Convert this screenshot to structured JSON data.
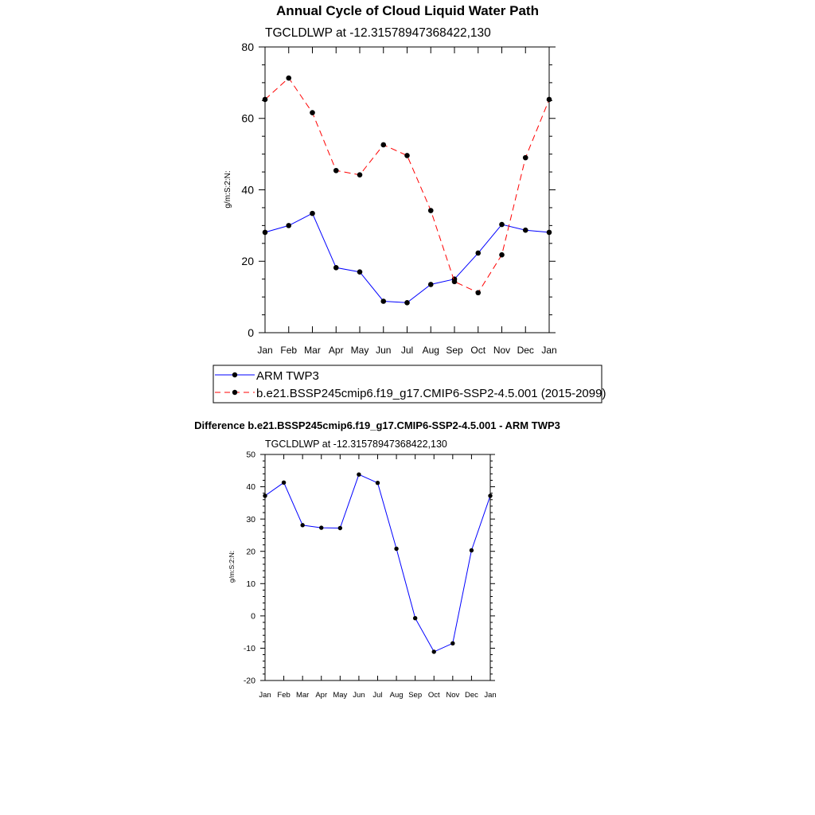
{
  "chart_data": [
    {
      "type": "line",
      "title": "Annual Cycle of Cloud Liquid Water Path",
      "subtitle": "TGCLDLWP at -12.31578947368422,130",
      "xlabel": "",
      "ylabel": "g/m:S:2:N:",
      "categories": [
        "Jan",
        "Feb",
        "Mar",
        "Apr",
        "May",
        "Jun",
        "Jul",
        "Aug",
        "Sep",
        "Oct",
        "Nov",
        "Dec",
        "Jan"
      ],
      "ylim": [
        0,
        80
      ],
      "yticks": [
        0,
        20,
        40,
        60,
        80
      ],
      "grid": false,
      "legend_position": "bottom",
      "series": [
        {
          "name": "ARM TWP3",
          "color": "#0000ff",
          "dash": "solid",
          "values": [
            28.1,
            30.0,
            33.4,
            18.2,
            17.0,
            8.8,
            8.4,
            13.5,
            15.0,
            22.3,
            30.3,
            28.7,
            28.1
          ]
        },
        {
          "name": "b.e21.BSSP245cmip6.f19_g17.CMIP6-SSP2-4.5.001 (2015-2099)",
          "color": "#ff0000",
          "dash": "dashed",
          "values": [
            65.3,
            71.3,
            61.6,
            45.4,
            44.2,
            52.6,
            49.6,
            34.2,
            14.3,
            11.2,
            21.8,
            49.0,
            65.3
          ]
        }
      ]
    },
    {
      "type": "line",
      "title": "Difference b.e21.BSSP245cmip6.f19_g17.CMIP6-SSP2-4.5.001 - ARM TWP3",
      "subtitle": "TGCLDLWP at -12.31578947368422,130",
      "xlabel": "",
      "ylabel": "g/m:S:2:N:",
      "categories": [
        "Jan",
        "Feb",
        "Mar",
        "Apr",
        "May",
        "Jun",
        "Jul",
        "Aug",
        "Sep",
        "Oct",
        "Nov",
        "Dec",
        "Jan"
      ],
      "ylim": [
        -20,
        50
      ],
      "yticks": [
        -20,
        -10,
        0,
        10,
        20,
        30,
        40,
        50
      ],
      "grid": false,
      "series": [
        {
          "name": "Difference",
          "color": "#0000ff",
          "dash": "solid",
          "values": [
            37.2,
            41.3,
            28.1,
            27.3,
            27.2,
            43.8,
            41.2,
            20.8,
            -0.7,
            -11.1,
            -8.5,
            20.3,
            37.2
          ]
        }
      ]
    }
  ]
}
